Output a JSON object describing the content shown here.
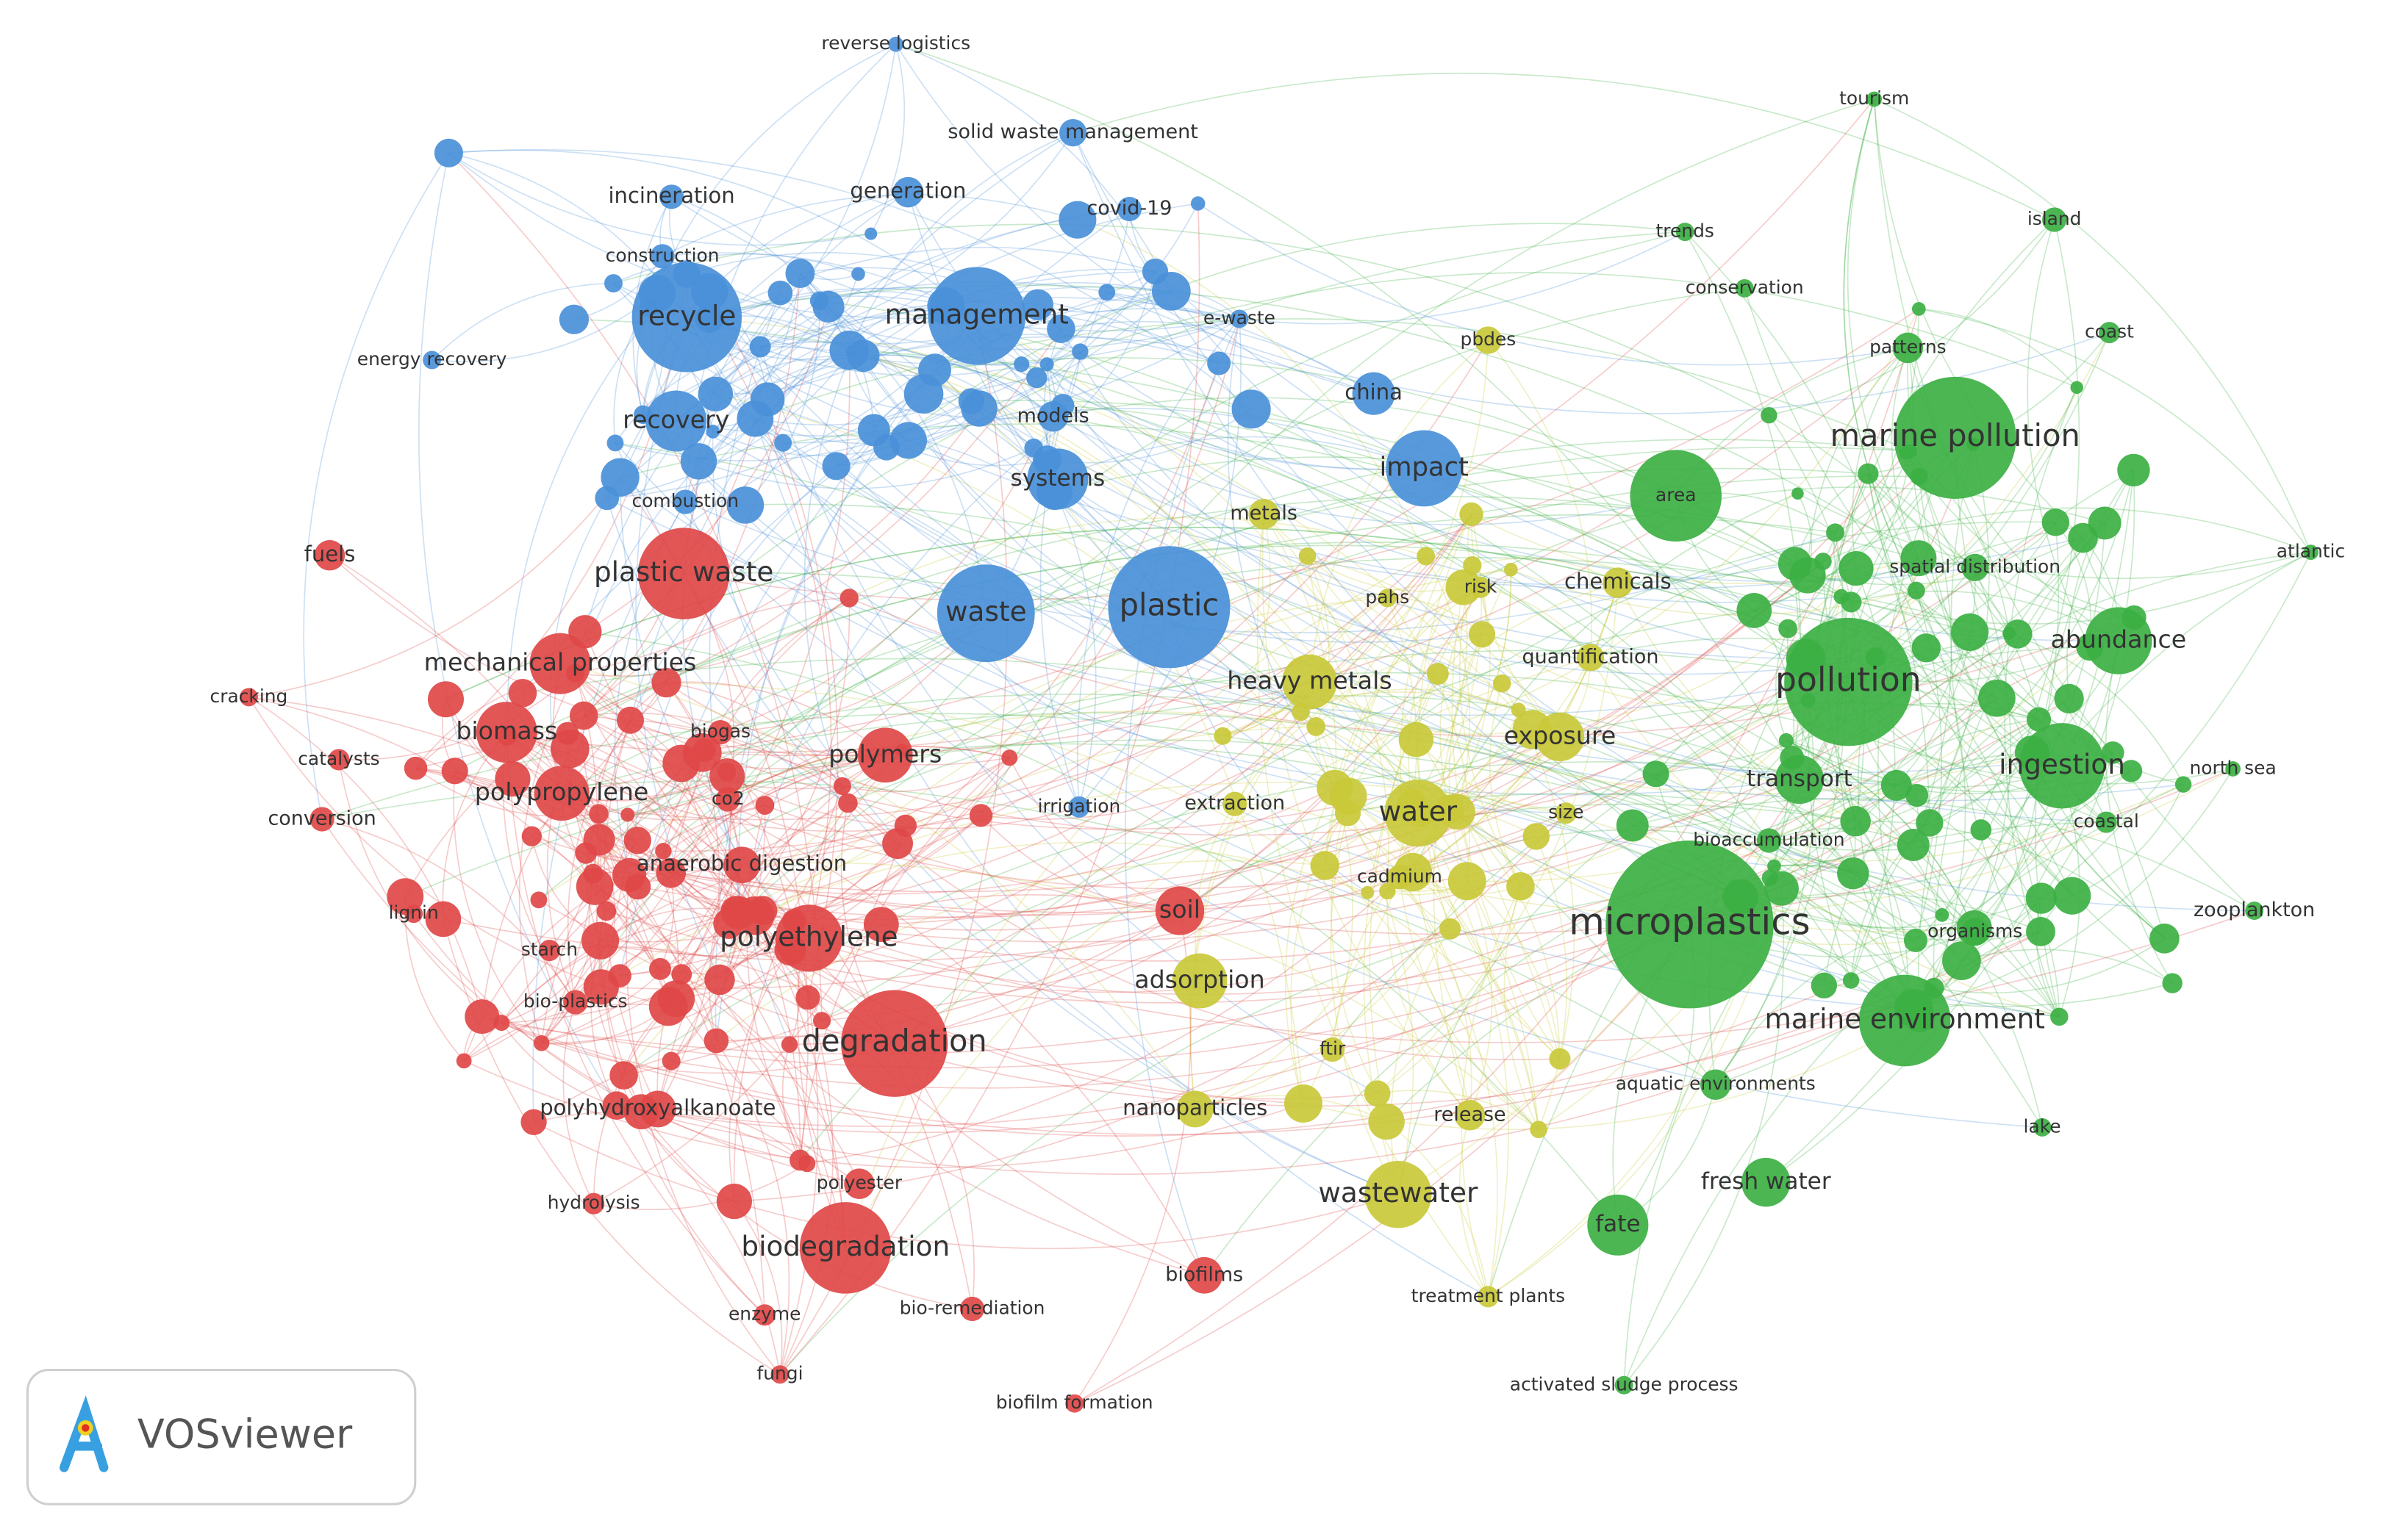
{
  "clusters": [
    {
      "color": "#4a90d9",
      "nodes": [
        {
          "label": "reverse logistics"
        },
        {
          "label": "solid waste management"
        },
        {
          "label": "incineration"
        },
        {
          "label": "generation"
        },
        {
          "label": "covid-19"
        },
        {
          "label": "construction"
        },
        {
          "label": "recycle"
        },
        {
          "label": "management"
        },
        {
          "label": "e-waste"
        },
        {
          "label": "energy recovery"
        },
        {
          "label": "china"
        },
        {
          "label": "recovery"
        },
        {
          "label": "models"
        },
        {
          "label": "systems"
        },
        {
          "label": "impact"
        },
        {
          "label": "combustion"
        },
        {
          "label": "waste"
        },
        {
          "label": "plastic"
        },
        {
          "label": "irrigation"
        }
      ]
    },
    {
      "color": "#3cb043",
      "nodes": [
        {
          "label": "tourism"
        },
        {
          "label": "trends"
        },
        {
          "label": "island"
        },
        {
          "label": "conservation"
        },
        {
          "label": "coast"
        },
        {
          "label": "patterns"
        },
        {
          "label": "marine pollution"
        },
        {
          "label": "area"
        },
        {
          "label": "atlantic"
        },
        {
          "label": "spatial distribution"
        },
        {
          "label": "abundance"
        },
        {
          "label": "pollution"
        },
        {
          "label": "ingestion"
        },
        {
          "label": "north sea"
        },
        {
          "label": "transport"
        },
        {
          "label": "coastal"
        },
        {
          "label": "bioaccumulation"
        },
        {
          "label": "microplastics"
        },
        {
          "label": "organisms"
        },
        {
          "label": "zooplankton"
        },
        {
          "label": "marine environment"
        },
        {
          "label": "aquatic environments"
        },
        {
          "label": "lake"
        },
        {
          "label": "fresh water"
        },
        {
          "label": "fate"
        },
        {
          "label": "activated sludge process"
        }
      ]
    },
    {
      "color": "#c9c93a",
      "nodes": [
        {
          "label": "pbdes"
        },
        {
          "label": "metals"
        },
        {
          "label": "pahs"
        },
        {
          "label": "risk"
        },
        {
          "label": "chemicals"
        },
        {
          "label": "quantification"
        },
        {
          "label": "heavy metals"
        },
        {
          "label": "exposure"
        },
        {
          "label": "extraction"
        },
        {
          "label": "water"
        },
        {
          "label": "size"
        },
        {
          "label": "cadmium"
        },
        {
          "label": "adsorption"
        },
        {
          "label": "ftir"
        },
        {
          "label": "nanoparticles"
        },
        {
          "label": "release"
        },
        {
          "label": "wastewater"
        },
        {
          "label": "treatment plants"
        }
      ]
    },
    {
      "color": "#e04848",
      "nodes": [
        {
          "label": "fuels"
        },
        {
          "label": "plastic waste"
        },
        {
          "label": "mechanical properties"
        },
        {
          "label": "cracking"
        },
        {
          "label": "biomass"
        },
        {
          "label": "biogas"
        },
        {
          "label": "polymers"
        },
        {
          "label": "catalysts"
        },
        {
          "label": "polypropylene"
        },
        {
          "label": "co2"
        },
        {
          "label": "conversion"
        },
        {
          "label": "anaerobic digestion"
        },
        {
          "label": "soil"
        },
        {
          "label": "lignin"
        },
        {
          "label": "starch"
        },
        {
          "label": "polyethylene"
        },
        {
          "label": "bio-plastics"
        },
        {
          "label": "degradation"
        },
        {
          "label": "polyhydroxyalkanoate"
        },
        {
          "label": "hydrolysis"
        },
        {
          "label": "polyester"
        },
        {
          "label": "biodegradation"
        },
        {
          "label": "biofilms"
        },
        {
          "label": "enzyme"
        },
        {
          "label": "bio-remediation"
        },
        {
          "label": "fungi"
        },
        {
          "label": "biofilm formation"
        }
      ]
    }
  ],
  "logo": {
    "text": "VOSviewer"
  }
}
